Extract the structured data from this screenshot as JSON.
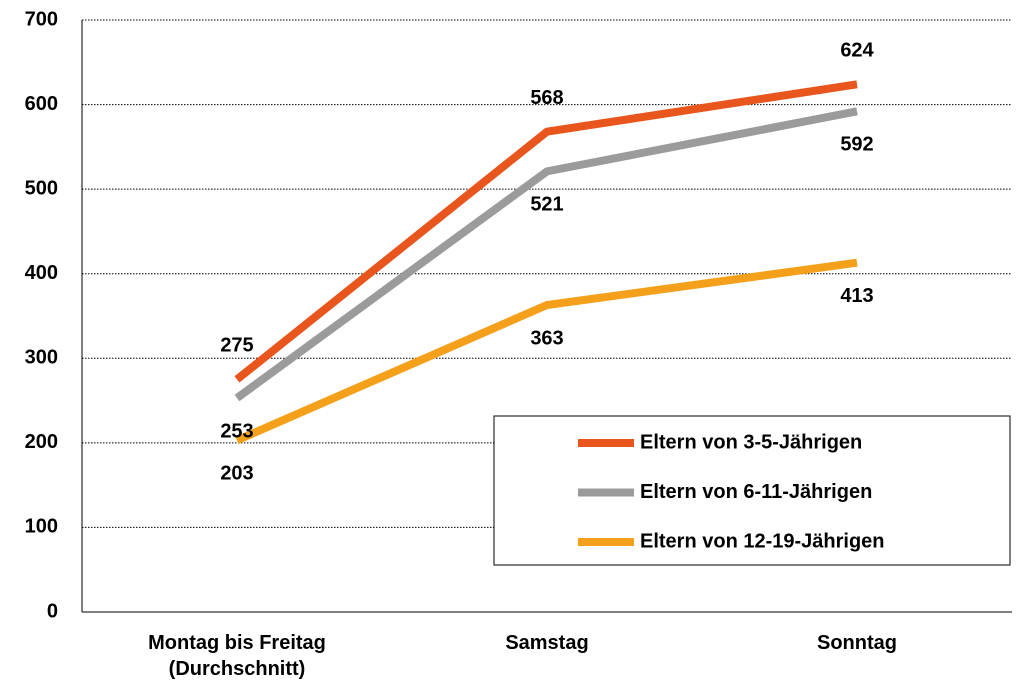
{
  "chart_data": {
    "type": "line",
    "categories": [
      "Montag bis Freitag\n(Durchschnitt)",
      "Samstag",
      "Sonntag"
    ],
    "series": [
      {
        "name": "Eltern von 3-5-Jährigen",
        "color": "#e8561e",
        "values": [
          275,
          568,
          624
        ]
      },
      {
        "name": "Eltern von 6-11-Jährigen",
        "color": "#9b9b9b",
        "values": [
          253,
          521,
          592
        ]
      },
      {
        "name": "Eltern von 12-19-Jährigen",
        "color": "#f5a01a",
        "values": [
          203,
          363,
          413
        ]
      }
    ],
    "ylim": [
      0,
      700
    ],
    "yticks": [
      0,
      100,
      200,
      300,
      400,
      500,
      600,
      700
    ],
    "grid": true,
    "legend": "lower right"
  }
}
